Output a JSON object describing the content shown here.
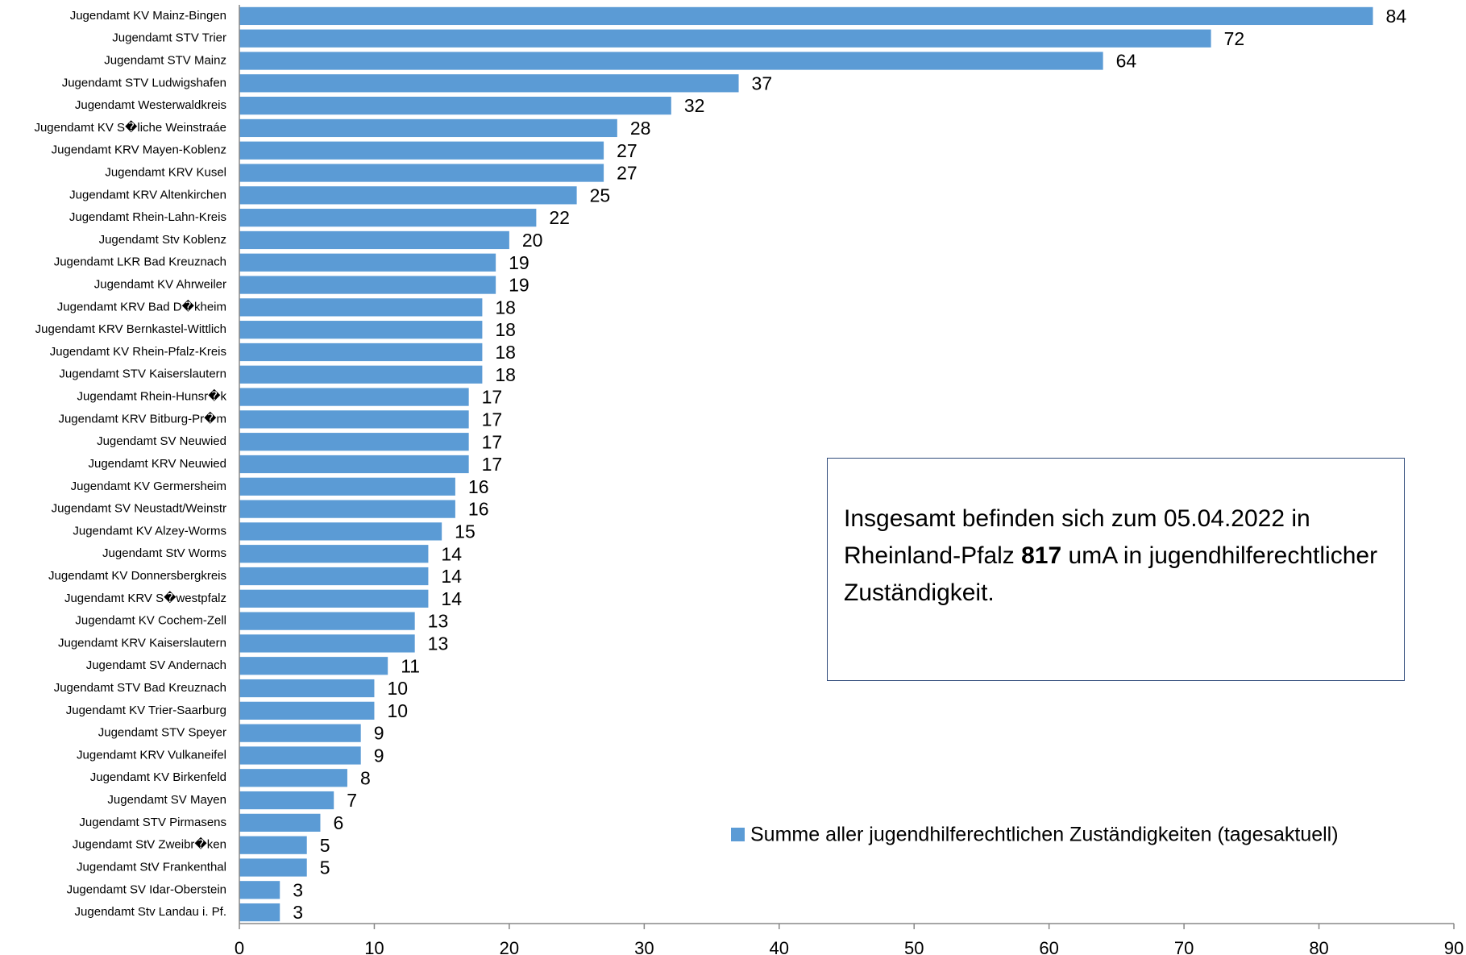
{
  "chart_data": {
    "type": "barh",
    "categories": [
      "Jugendamt KV Mainz-Bingen",
      "Jugendamt STV Trier",
      "Jugendamt STV Mainz",
      "Jugendamt STV Ludwigshafen",
      "Jugendamt Westerwaldkreis",
      "Jugendamt KV S�liche Weinstraáe",
      "Jugendamt KRV Mayen-Koblenz",
      "Jugendamt KRV Kusel",
      "Jugendamt KRV Altenkirchen",
      "Jugendamt Rhein-Lahn-Kreis",
      "Jugendamt Stv Koblenz",
      "Jugendamt LKR Bad Kreuznach",
      "Jugendamt KV Ahrweiler",
      "Jugendamt KRV Bad D�kheim",
      "Jugendamt KRV Bernkastel-Wittlich",
      "Jugendamt KV Rhein-Pfalz-Kreis",
      "Jugendamt STV Kaiserslautern",
      "Jugendamt Rhein-Hunsr�k",
      "Jugendamt KRV Bitburg-Pr�m",
      "Jugendamt SV Neuwied",
      "Jugendamt KRV Neuwied",
      "Jugendamt KV Germersheim",
      "Jugendamt SV Neustadt/Weinstr",
      "Jugendamt KV Alzey-Worms",
      "Jugendamt StV Worms",
      "Jugendamt KV Donnersbergkreis",
      "Jugendamt KRV S�westpfalz",
      "Jugendamt KV Cochem-Zell",
      "Jugendamt KRV Kaiserslautern",
      "Jugendamt SV Andernach",
      "Jugendamt STV Bad Kreuznach",
      "Jugendamt KV Trier-Saarburg",
      "Jugendamt STV Speyer",
      "Jugendamt KRV Vulkaneifel",
      "Jugendamt KV Birkenfeld",
      "Jugendamt SV Mayen",
      "Jugendamt STV Pirmasens",
      "Jugendamt StV Zweibr�ken",
      "Jugendamt StV Frankenthal",
      "Jugendamt SV Idar-Oberstein",
      "Jugendamt Stv Landau i. Pf."
    ],
    "series": [
      {
        "name": "Summe aller jugendhilferechtlichen Zuständigkeiten (tagesaktuell)",
        "color": "#5b9bd5",
        "values": [
          84,
          72,
          64,
          37,
          32,
          28,
          27,
          27,
          25,
          22,
          20,
          19,
          19,
          18,
          18,
          18,
          18,
          17,
          17,
          17,
          17,
          16,
          16,
          15,
          14,
          14,
          14,
          13,
          13,
          11,
          10,
          10,
          9,
          9,
          8,
          7,
          6,
          5,
          5,
          3,
          3
        ]
      }
    ],
    "xlim": [
      0,
      90
    ],
    "xticks": [
      0,
      10,
      20,
      30,
      40,
      50,
      60,
      70,
      80,
      90
    ],
    "annotation": [
      "Insgesamt befinden sich zum 05.04.2022 in Rheinland-Pfalz ",
      "817",
      " umA in jugendhilferechtlicher Zuständigkeit."
    ]
  }
}
